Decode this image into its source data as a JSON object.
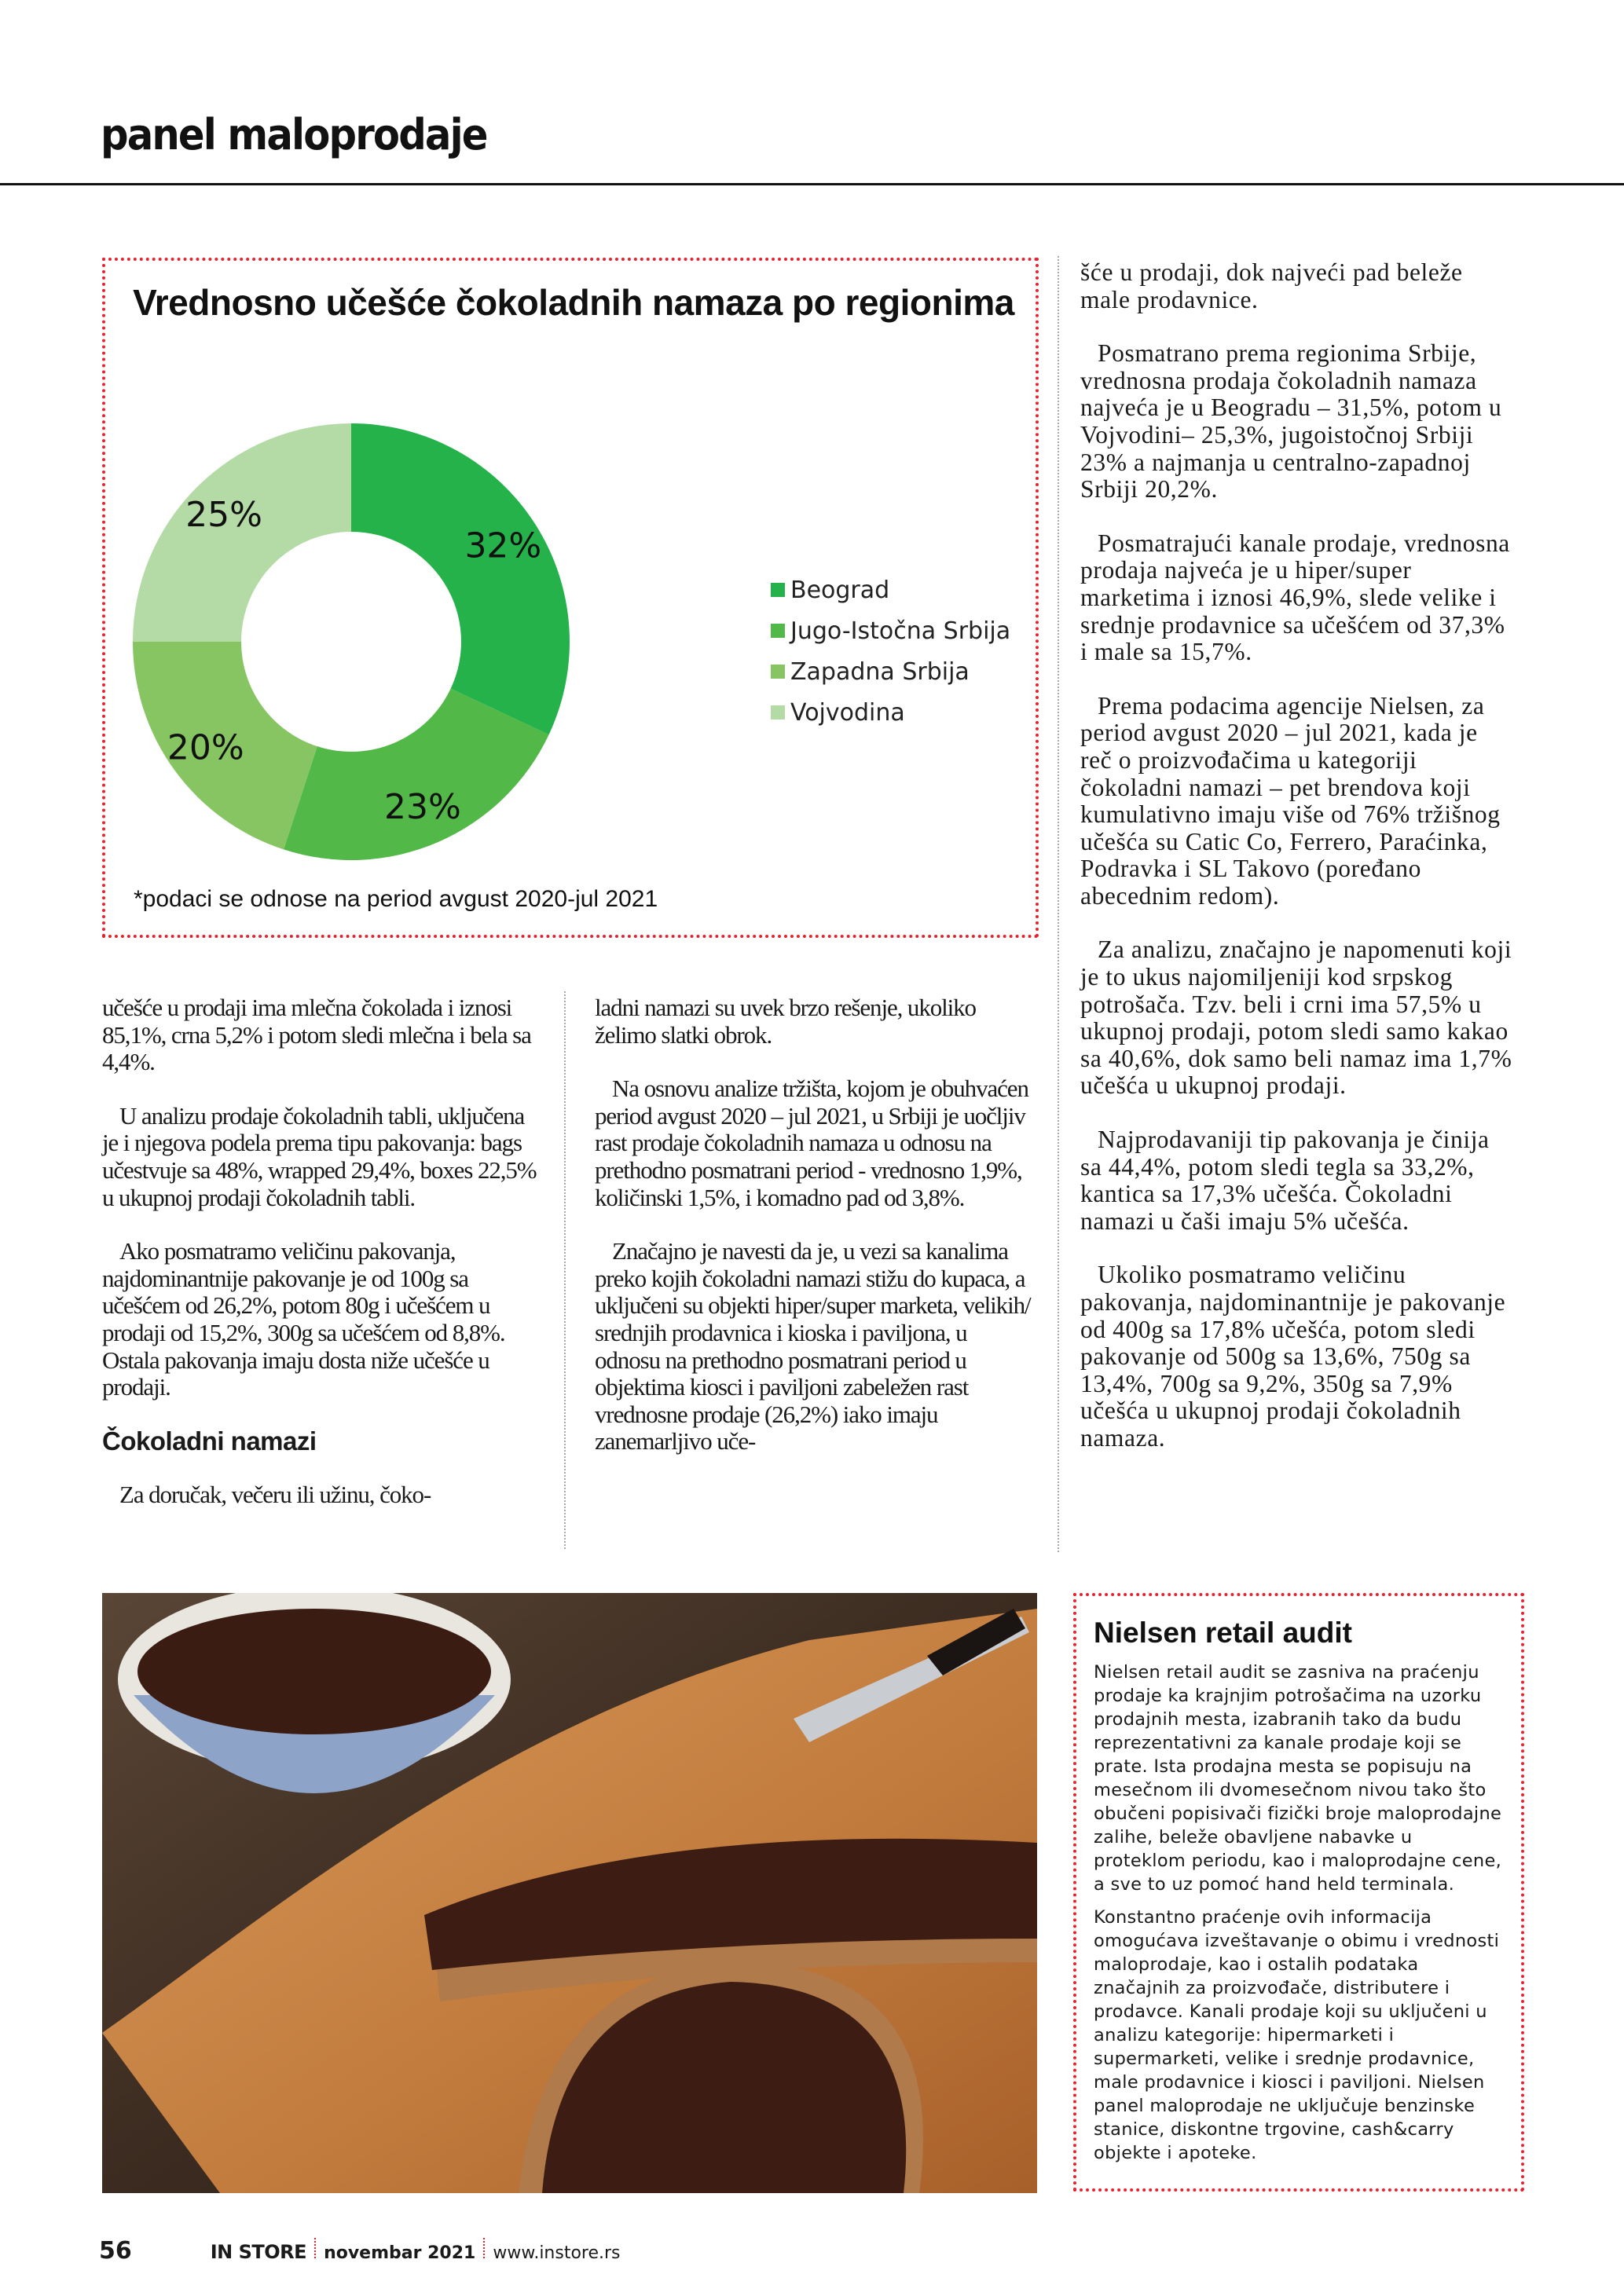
{
  "header": {
    "section_title": "panel maloprodaje"
  },
  "chart_data": {
    "type": "pie",
    "title": "Vrednosno učešće čokoladnih namaza po regionima",
    "categories": [
      "Beograd",
      "Jugo-Istočna Srbija",
      "Zapadna Srbija",
      "Vojvodina"
    ],
    "values": [
      32,
      23,
      20,
      25
    ],
    "labels": [
      "32%",
      "23%",
      "20%",
      "25%"
    ],
    "colors": [
      "#25b24a",
      "#52b848",
      "#86c562",
      "#b4dba6"
    ],
    "donut": true,
    "legend_position": "right",
    "note": "*podaci se odnose na period avgust 2020-jul 2021"
  },
  "article": {
    "col_a": [
      "učešće u prodaji ima mlečna čokolada i iznosi 85,1%, crna 5,2% i potom sledi mlečna i bela sa 4,4%.",
      "U analizu prodaje čokoladnih tabli, uključena je i njegova podela prema tipu pakovanja: bags učestvuje sa 48%, wrapped 29,4%, boxes 22,5% u ukupnoj prodaji čokoladnih tabli.",
      "Ako posmatramo veličinu pakovanja, najdominantnije pakovanje je od 100g sa učešćem od 26,2%, potom 80g i učešćem u prodaji od 15,2%, 300g sa učešćem od 8,8%. Ostala pakovanja imaju dosta niže učešće u prodaji."
    ],
    "subheading": "Čokoladni namazi",
    "col_a_after": "Za doručak, večeru ili užinu, čoko-",
    "col_b": [
      "ladni namazi su uvek brzo rešenje, ukoliko želimo slatki obrok.",
      "Na osnovu analize tržišta, kojom je obuhvaćen period avgust 2020 – jul 2021, u Srbiji je uočljiv rast prodaje čokoladnih namaza u odnosu na prethodno posmatrani period - vrednosno 1,9%, količinski 1,5%, i komadno pad od 3,8%.",
      "Značajno je navesti da je, u vezi sa kanalima preko kojih čokoladni namazi stižu do kupaca, a uključeni su objekti hiper/super marketa, velikih/ srednjih prodavnica i kioska i paviljona, u odnosu na prethodno posmatrani period u objektima kiosci i paviljoni zabeležen rast vrednosne prodaje (26,2%) iako imaju zanemarljivo uče-"
    ],
    "col_right": [
      "šće u prodaji, dok najveći pad beleže male prodavnice.",
      "Posmatrano prema regionima Srbije, vrednosna prodaja čokoladnih namaza najveća je u Beogradu – 31,5%, potom u Vojvodini– 25,3%, jugoistočnoj Srbiji 23% a najmanja u centralno-zapadnoj Srbiji 20,2%.",
      "Posmatrajući kanale prodaje, vrednosna prodaja najveća je u hiper/super marketima i iznosi 46,9%, slede velike i srednje prodavnice sa učešćem od 37,3% i male sa 15,7%.",
      "Prema podacima agencije Nielsen, za period  avgust 2020 – jul 2021, kada je reč o proizvođačima u kategoriji čokoladni namazi – pet brendova koji kumulativno imaju više od 76% tržišnog učešća su Catic Co, Ferrero, Paraćinka, Podravka i SL Takovo (poređano abecednim redom).",
      "Za analizu, značajno je napomenuti koji je to ukus najomiljeniji kod srpskog potrošača. Tzv. beli i crni ima 57,5% u ukupnoj prodaji, potom sledi samo kakao sa 40,6%, dok samo beli namaz ima 1,7% učešća u ukupnoj prodaji.",
      "Najprodavaniji tip pakovanja je činija sa 44,4%, potom sledi tegla sa 33,2%, kantica sa 17,3% učešća. Čokoladni namazi u čaši imaju 5% učešća.",
      "Ukoliko posmatramo veličinu pakovanja, najdominantnije je pakovanje od 400g sa 17,8% učešća, potom sledi pakovanje od 500g sa 13,6%, 750g sa 13,4%, 700g sa 9,2%, 350g sa 7,9% učešća u ukupnoj prodaji čokoladnih namaza."
    ]
  },
  "sidebar_box": {
    "title": "Nielsen retail audit",
    "paragraphs": [
      "Nielsen retail audit se zasniva na praćenju prodaje ka krajnjim potrošačima na uzorku prodajnih mesta, izabranih tako da budu reprezentativni za kanale prodaje koji se prate. Ista prodajna mesta se popisuju na mesečnom ili dvomesečnom nivou tako što obučeni popisivači fizički broje maloprodajne zalihe, beleže obavljene nabavke u proteklom periodu, kao i maloprodajne cene, a sve to uz pomoć hand held terminala.",
      "Konstantno praćenje ovih informacija omogućava izveštavanje o obimu i vrednosti maloprodaje, kao i ostalih podataka značajnih za proizvođače, distributere i prodavce. Kanali prodaje koji su uključeni u analizu kategorije: hipermarketi i supermarketi, velike i srednje prodavnice, male prodavnice i kiosci i paviljoni. Nielsen panel maloprodaje ne uključuje benzinske stanice, diskontne trgovine, cash&carry objekte i apoteke."
    ]
  },
  "footer": {
    "page_number": "56",
    "magazine": "IN STORE",
    "issue": "novembar 2021",
    "website": "www.instore.rs"
  },
  "accent_color": "#e52330"
}
